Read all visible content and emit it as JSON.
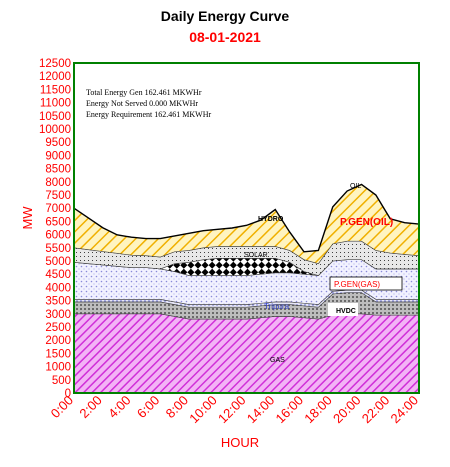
{
  "title": "Daily Energy Curve",
  "subtitle": "08-01-2021",
  "stats": {
    "line1": "Total Energy Gen 162.461 MKWHr",
    "line2": "Energy Not Served  0.000 MKWHr",
    "line3": "Energy Requirement    162.461 MKWHr"
  },
  "colors": {
    "title": "#000000",
    "subtitle": "#ff0000",
    "axis_text": "#ff0000",
    "frame": "#008000",
    "gas": "#e060e8",
    "hvdc": "#808080",
    "tripura": "#9aa0e0",
    "pgen_gas": "#c8c8f0",
    "solar": "#000000",
    "hydro": "#f0c020",
    "pgen_oil": "#c02060"
  },
  "chart_data": {
    "type": "area",
    "stacked": true,
    "xlabel": "HOUR",
    "ylabel": "MW",
    "xlim": [
      0,
      24
    ],
    "ylim": [
      0,
      12500
    ],
    "x_ticks": [
      "0:00",
      "2:00",
      "4:00",
      "6:00",
      "8:00",
      "10:00",
      "12:00",
      "14:00",
      "16:00",
      "18:00",
      "20:00",
      "22:00",
      "24:00"
    ],
    "y_ticks": [
      0,
      500,
      1000,
      1500,
      2000,
      2500,
      3000,
      3500,
      4000,
      4500,
      5000,
      5500,
      6000,
      6500,
      7000,
      7500,
      8000,
      8500,
      9000,
      9500,
      10000,
      10500,
      11000,
      11500,
      12000,
      12500
    ],
    "x": [
      0,
      1,
      2,
      3,
      4,
      5,
      6,
      7,
      8,
      9,
      10,
      11,
      12,
      13,
      14,
      15,
      16,
      17,
      18,
      19,
      20,
      21,
      22,
      23,
      24
    ],
    "series": [
      {
        "name": "GAS",
        "values": [
          3000,
          3000,
          3000,
          3000,
          3000,
          3000,
          3000,
          2900,
          2800,
          2800,
          2800,
          2800,
          2800,
          2850,
          2900,
          2900,
          2850,
          2800,
          2950,
          3000,
          3000,
          2950,
          2950,
          2950,
          2950
        ]
      },
      {
        "name": "HVDC",
        "values": [
          450,
          450,
          450,
          450,
          450,
          450,
          450,
          450,
          450,
          450,
          450,
          450,
          450,
          450,
          450,
          450,
          450,
          450,
          800,
          800,
          800,
          500,
          500,
          500,
          500
        ]
      },
      {
        "name": "Tripura",
        "values": [
          100,
          100,
          100,
          100,
          100,
          100,
          100,
          100,
          100,
          100,
          100,
          100,
          100,
          100,
          100,
          100,
          100,
          100,
          100,
          100,
          100,
          100,
          100,
          100,
          100
        ]
      },
      {
        "name": "P.GEN(GAS)",
        "values": [
          1400,
          1350,
          1300,
          1250,
          1200,
          1200,
          1150,
          1150,
          1100,
          1100,
          1100,
          1100,
          1100,
          1100,
          1100,
          1100,
          1100,
          1100,
          1150,
          1150,
          1150,
          1150,
          1150,
          1150,
          1150
        ]
      },
      {
        "name": "SOLAR",
        "values": [
          0,
          0,
          0,
          0,
          0,
          0,
          0,
          300,
          500,
          600,
          650,
          650,
          650,
          600,
          550,
          400,
          100,
          0,
          0,
          0,
          0,
          0,
          0,
          0,
          0
        ]
      },
      {
        "name": "P.GEN(OIL)",
        "values": [
          550,
          530,
          510,
          490,
          470,
          450,
          450,
          450,
          450,
          450,
          450,
          450,
          450,
          450,
          450,
          450,
          450,
          450,
          650,
          700,
          700,
          700,
          600,
          550,
          500
        ]
      },
      {
        "name": "HYDRO",
        "values": [
          1500,
          1200,
          900,
          700,
          680,
          650,
          700,
          600,
          650,
          650,
          650,
          700,
          800,
          1000,
          1400,
          700,
          300,
          500,
          1400,
          1900,
          2150,
          2100,
          1300,
          1200,
          1200
        ]
      },
      {
        "name": "OIL",
        "values": [
          0,
          0,
          0,
          0,
          0,
          0,
          0,
          0,
          0,
          0,
          0,
          0,
          0,
          0,
          0,
          0,
          0,
          0,
          0,
          0,
          0,
          0,
          0,
          0,
          0
        ]
      }
    ],
    "annotations": [
      "GAS",
      "HVDC",
      "Tripura",
      "P.GEN(GAS)",
      "SOLAR",
      "P.GEN(OIL)",
      "HYDRO",
      "OIL"
    ],
    "grid": false,
    "legend": "none"
  }
}
